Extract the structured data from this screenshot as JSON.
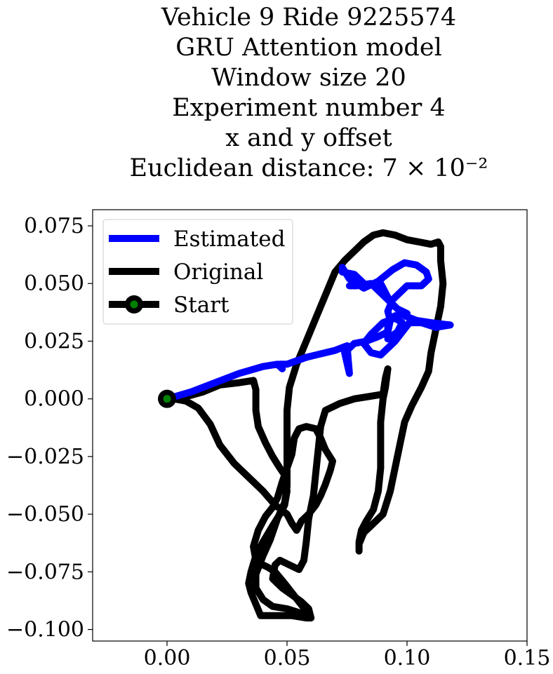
{
  "chart_data": {
    "type": "line",
    "title_lines": [
      "Vehicle 9 Ride 9225574",
      "GRU Attention model",
      "Window size 20",
      "Experiment number 4",
      "x and y offset",
      "Euclidean distance: 7 × 10⁻²"
    ],
    "xlabel": "",
    "ylabel": "",
    "xlim": [
      -0.031,
      0.15
    ],
    "ylim": [
      -0.105,
      0.082
    ],
    "xticks": [
      0.0,
      0.05,
      0.1,
      0.15
    ],
    "xtick_labels": [
      "0.00",
      "0.05",
      "0.10",
      "0.15"
    ],
    "yticks": [
      0.075,
      0.05,
      0.025,
      0.0,
      -0.025,
      -0.05,
      -0.075,
      -0.1
    ],
    "ytick_labels": [
      "0.075",
      "0.050",
      "0.025",
      "0.000",
      "−0.025",
      "−0.050",
      "−0.075",
      "−0.100"
    ],
    "grid": false,
    "legend_position": "top-left",
    "series": [
      {
        "name": "Estimated",
        "color": "#0000ff",
        "points": [
          [
            0.0,
            0.0
          ],
          [
            0.01,
            0.003
          ],
          [
            0.02,
            0.007
          ],
          [
            0.03,
            0.011
          ],
          [
            0.04,
            0.014
          ],
          [
            0.046,
            0.015
          ],
          [
            0.048,
            0.013
          ],
          [
            0.047,
            0.015
          ],
          [
            0.05,
            0.015
          ],
          [
            0.058,
            0.018
          ],
          [
            0.062,
            0.019
          ],
          [
            0.07,
            0.021
          ],
          [
            0.075,
            0.023
          ],
          [
            0.076,
            0.011
          ],
          [
            0.074,
            0.02
          ],
          [
            0.078,
            0.024
          ],
          [
            0.083,
            0.025
          ],
          [
            0.088,
            0.027
          ],
          [
            0.092,
            0.029
          ],
          [
            0.093,
            0.034
          ],
          [
            0.092,
            0.038
          ],
          [
            0.094,
            0.043
          ],
          [
            0.1,
            0.049
          ],
          [
            0.106,
            0.049
          ],
          [
            0.109,
            0.052
          ],
          [
            0.108,
            0.055
          ],
          [
            0.104,
            0.058
          ],
          [
            0.099,
            0.059
          ],
          [
            0.094,
            0.056
          ],
          [
            0.088,
            0.051
          ],
          [
            0.082,
            0.048
          ],
          [
            0.076,
            0.052
          ],
          [
            0.073,
            0.057
          ],
          [
            0.073,
            0.055
          ],
          [
            0.078,
            0.054
          ],
          [
            0.083,
            0.049
          ],
          [
            0.089,
            0.05
          ],
          [
            0.093,
            0.042
          ],
          [
            0.099,
            0.036
          ],
          [
            0.104,
            0.034
          ],
          [
            0.11,
            0.033
          ],
          [
            0.118,
            0.032
          ],
          [
            0.112,
            0.031
          ],
          [
            0.106,
            0.033
          ],
          [
            0.101,
            0.033
          ],
          [
            0.095,
            0.025
          ],
          [
            0.089,
            0.019
          ],
          [
            0.085,
            0.02
          ],
          [
            0.082,
            0.024
          ],
          [
            0.085,
            0.028
          ],
          [
            0.09,
            0.033
          ],
          [
            0.095,
            0.035
          ],
          [
            0.098,
            0.033
          ],
          [
            0.096,
            0.029
          ],
          [
            0.092,
            0.026
          ],
          [
            0.092,
            0.034
          ],
          [
            0.095,
            0.036
          ],
          [
            0.1,
            0.037
          ],
          [
            0.096,
            0.039
          ],
          [
            0.09,
            0.045
          ],
          [
            0.085,
            0.05
          ],
          [
            0.079,
            0.049
          ],
          [
            0.076,
            0.049
          ]
        ]
      },
      {
        "name": "Original",
        "color": "#000000",
        "points": [
          [
            0.0,
            0.0
          ],
          [
            0.008,
            0.001
          ],
          [
            0.015,
            0.003
          ],
          [
            0.022,
            0.006
          ],
          [
            0.03,
            0.007
          ],
          [
            0.036,
            0.008
          ],
          [
            0.037,
            0.004
          ],
          [
            0.037,
            -0.005
          ],
          [
            0.038,
            -0.012
          ],
          [
            0.041,
            -0.019
          ],
          [
            0.044,
            -0.025
          ],
          [
            0.047,
            -0.03
          ],
          [
            0.049,
            -0.033
          ],
          [
            0.05,
            -0.04
          ],
          [
            0.049,
            -0.046
          ],
          [
            0.047,
            -0.05
          ],
          [
            0.044,
            -0.055
          ],
          [
            0.04,
            -0.062
          ],
          [
            0.037,
            -0.068
          ],
          [
            0.035,
            -0.075
          ],
          [
            0.034,
            -0.08
          ],
          [
            0.035,
            -0.084
          ],
          [
            0.037,
            -0.089
          ],
          [
            0.039,
            -0.094
          ],
          [
            0.045,
            -0.094
          ],
          [
            0.052,
            -0.094
          ],
          [
            0.058,
            -0.095
          ],
          [
            0.06,
            -0.095
          ],
          [
            0.056,
            -0.093
          ],
          [
            0.05,
            -0.091
          ],
          [
            0.044,
            -0.09
          ],
          [
            0.04,
            -0.087
          ],
          [
            0.037,
            -0.082
          ],
          [
            0.037,
            -0.076
          ],
          [
            0.04,
            -0.068
          ],
          [
            0.043,
            -0.061
          ],
          [
            0.046,
            -0.052
          ],
          [
            0.049,
            -0.045
          ],
          [
            0.05,
            -0.038
          ],
          [
            0.05,
            -0.03
          ],
          [
            0.05,
            -0.022
          ],
          [
            0.05,
            -0.015
          ],
          [
            0.05,
            -0.005
          ],
          [
            0.051,
            0.005
          ],
          [
            0.054,
            0.015
          ],
          [
            0.058,
            0.025
          ],
          [
            0.062,
            0.035
          ],
          [
            0.066,
            0.045
          ],
          [
            0.07,
            0.055
          ],
          [
            0.074,
            0.06
          ],
          [
            0.078,
            0.064
          ],
          [
            0.082,
            0.068
          ],
          [
            0.086,
            0.071
          ],
          [
            0.09,
            0.072
          ],
          [
            0.095,
            0.071
          ],
          [
            0.1,
            0.069
          ],
          [
            0.105,
            0.068
          ],
          [
            0.11,
            0.067
          ],
          [
            0.113,
            0.068
          ],
          [
            0.114,
            0.066
          ],
          [
            0.114,
            0.06
          ],
          [
            0.115,
            0.05
          ],
          [
            0.114,
            0.04
          ],
          [
            0.112,
            0.03
          ],
          [
            0.11,
            0.02
          ],
          [
            0.109,
            0.012
          ],
          [
            0.106,
            0.005
          ],
          [
            0.102,
            -0.003
          ],
          [
            0.099,
            -0.01
          ],
          [
            0.097,
            -0.02
          ],
          [
            0.095,
            -0.03
          ],
          [
            0.093,
            -0.04
          ],
          [
            0.09,
            -0.05
          ],
          [
            0.085,
            -0.055
          ],
          [
            0.082,
            -0.058
          ],
          [
            0.08,
            -0.063
          ],
          [
            0.08,
            -0.066
          ],
          [
            0.08,
            -0.062
          ],
          [
            0.081,
            -0.057
          ],
          [
            0.083,
            -0.053
          ],
          [
            0.086,
            -0.048
          ],
          [
            0.088,
            -0.04
          ],
          [
            0.089,
            -0.03
          ],
          [
            0.089,
            -0.02
          ],
          [
            0.089,
            -0.01
          ],
          [
            0.09,
            0.0
          ],
          [
            0.091,
            0.005
          ],
          [
            0.092,
            0.013
          ],
          [
            0.091,
            0.009
          ],
          [
            0.09,
            0.002
          ],
          [
            0.084,
            0.001
          ],
          [
            0.078,
            0.0
          ],
          [
            0.072,
            -0.002
          ],
          [
            0.066,
            -0.005
          ],
          [
            0.064,
            -0.012
          ],
          [
            0.063,
            -0.022
          ],
          [
            0.062,
            -0.032
          ],
          [
            0.061,
            -0.042
          ],
          [
            0.059,
            -0.052
          ],
          [
            0.058,
            -0.062
          ],
          [
            0.057,
            -0.07
          ],
          [
            0.055,
            -0.074
          ],
          [
            0.051,
            -0.072
          ],
          [
            0.047,
            -0.07
          ],
          [
            0.045,
            -0.072
          ],
          [
            0.044,
            -0.078
          ],
          [
            0.048,
            -0.082
          ],
          [
            0.052,
            -0.085
          ],
          [
            0.056,
            -0.088
          ],
          [
            0.059,
            -0.091
          ],
          [
            0.06,
            -0.095
          ],
          [
            0.058,
            -0.092
          ],
          [
            0.055,
            -0.088
          ],
          [
            0.049,
            -0.08
          ],
          [
            0.045,
            -0.075
          ],
          [
            0.042,
            -0.073
          ],
          [
            0.04,
            -0.072
          ],
          [
            0.037,
            -0.07
          ],
          [
            0.036,
            -0.064
          ],
          [
            0.038,
            -0.057
          ],
          [
            0.041,
            -0.051
          ],
          [
            0.044,
            -0.047
          ],
          [
            0.046,
            -0.043
          ],
          [
            0.048,
            -0.036
          ],
          [
            0.05,
            -0.03
          ],
          [
            0.052,
            -0.024
          ],
          [
            0.053,
            -0.017
          ],
          [
            0.055,
            -0.013
          ],
          [
            0.058,
            -0.012
          ],
          [
            0.062,
            -0.013
          ],
          [
            0.064,
            -0.017
          ],
          [
            0.066,
            -0.022
          ],
          [
            0.069,
            -0.027
          ],
          [
            0.068,
            -0.031
          ],
          [
            0.066,
            -0.037
          ],
          [
            0.064,
            -0.042
          ],
          [
            0.062,
            -0.046
          ],
          [
            0.059,
            -0.05
          ],
          [
            0.056,
            -0.053
          ],
          [
            0.054,
            -0.057
          ],
          [
            0.052,
            -0.054
          ],
          [
            0.05,
            -0.05
          ],
          [
            0.045,
            -0.046
          ],
          [
            0.04,
            -0.04
          ],
          [
            0.034,
            -0.034
          ],
          [
            0.028,
            -0.028
          ],
          [
            0.022,
            -0.02
          ],
          [
            0.018,
            -0.011
          ],
          [
            0.013,
            -0.004
          ],
          [
            0.008,
            -0.001
          ],
          [
            0.003,
            0.0
          ],
          [
            0.0,
            0.0
          ]
        ]
      }
    ],
    "start_marker": {
      "name": "Start",
      "point": [
        0.0,
        0.0
      ],
      "outer_color": "#000000",
      "inner_color": "#008000"
    }
  }
}
